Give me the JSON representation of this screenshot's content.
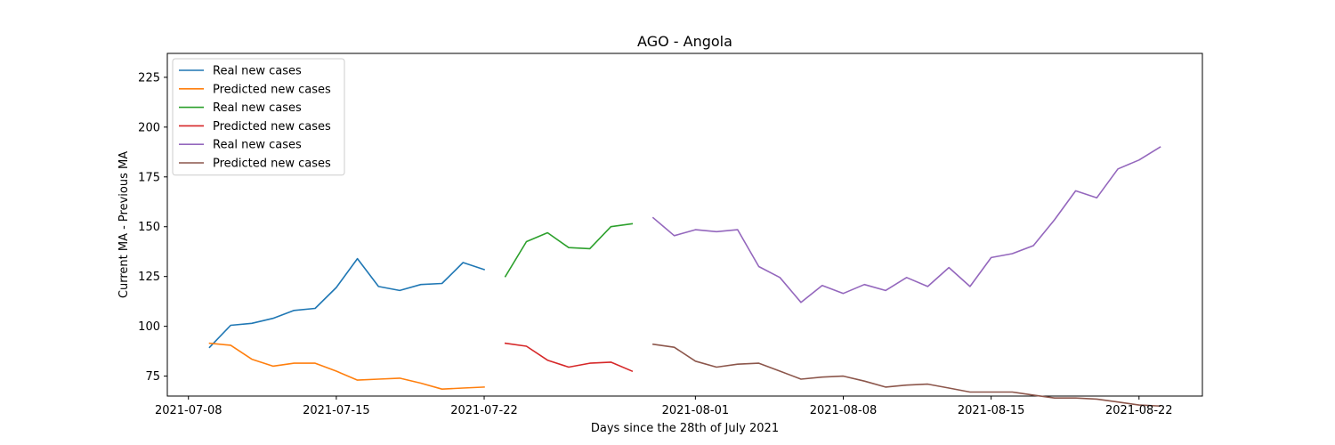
{
  "chart_data": {
    "type": "line",
    "title": "AGO - Angola",
    "xlabel": "Days since the 28th of July 2021",
    "ylabel": "Current MA - Previous MA",
    "xlim": [
      "2021-07-07",
      "2021-08-25"
    ],
    "ylim": [
      65,
      237
    ],
    "x_ticks": [
      "2021-07-08",
      "2021-07-15",
      "2021-07-22",
      "2021-08-01",
      "2021-08-08",
      "2021-08-15",
      "2021-08-22"
    ],
    "y_ticks": [
      75,
      100,
      125,
      150,
      175,
      200,
      225
    ],
    "grid": false,
    "legend_position": "top-left",
    "series": [
      {
        "name": "Real new cases",
        "color": "#1f77b4",
        "x": [
          "2021-07-09",
          "2021-07-10",
          "2021-07-11",
          "2021-07-12",
          "2021-07-13",
          "2021-07-14",
          "2021-07-15",
          "2021-07-16",
          "2021-07-17",
          "2021-07-18",
          "2021-07-19",
          "2021-07-20",
          "2021-07-21",
          "2021-07-22"
        ],
        "values": [
          89.5,
          100.5,
          101.5,
          104,
          108,
          109,
          119.5,
          134,
          120,
          118,
          121,
          121.5,
          132,
          128.5
        ]
      },
      {
        "name": "Predicted new cases",
        "color": "#ff7f0e",
        "x": [
          "2021-07-09",
          "2021-07-10",
          "2021-07-11",
          "2021-07-12",
          "2021-07-13",
          "2021-07-14",
          "2021-07-15",
          "2021-07-16",
          "2021-07-17",
          "2021-07-18",
          "2021-07-19",
          "2021-07-20",
          "2021-07-21",
          "2021-07-22"
        ],
        "values": [
          91.5,
          90.5,
          83.5,
          80,
          81.5,
          81.5,
          77.5,
          73,
          73.5,
          74,
          71.5,
          68.5,
          69,
          69.5
        ]
      },
      {
        "name": "Real new cases",
        "color": "#2ca02c",
        "x": [
          "2021-07-23",
          "2021-07-24",
          "2021-07-25",
          "2021-07-26",
          "2021-07-27",
          "2021-07-28",
          "2021-07-29"
        ],
        "values": [
          125,
          142.5,
          147,
          139.5,
          139,
          150,
          151.5
        ]
      },
      {
        "name": "Predicted new cases",
        "color": "#d62728",
        "x": [
          "2021-07-23",
          "2021-07-24",
          "2021-07-25",
          "2021-07-26",
          "2021-07-27",
          "2021-07-28",
          "2021-07-29"
        ],
        "values": [
          91.5,
          90,
          83,
          79.5,
          81.5,
          82,
          77.5
        ]
      },
      {
        "name": "Real new cases",
        "color": "#9467bd",
        "x": [
          "2021-07-30",
          "2021-07-31",
          "2021-08-01",
          "2021-08-02",
          "2021-08-03",
          "2021-08-04",
          "2021-08-05",
          "2021-08-06",
          "2021-08-07",
          "2021-08-08",
          "2021-08-09",
          "2021-08-10",
          "2021-08-11",
          "2021-08-12",
          "2021-08-13",
          "2021-08-14",
          "2021-08-15",
          "2021-08-16",
          "2021-08-17",
          "2021-08-18",
          "2021-08-19",
          "2021-08-20",
          "2021-08-21",
          "2021-08-22",
          "2021-08-23"
        ],
        "values": [
          154.5,
          145.5,
          148.5,
          147.5,
          148.5,
          130,
          124.5,
          112,
          120.5,
          116.5,
          121,
          118,
          124.5,
          120,
          129.5,
          120,
          134.5,
          136.5,
          140.5,
          153.5,
          168,
          164.5,
          179,
          183.5,
          190
        ]
      },
      {
        "name": "Predicted new cases",
        "color": "#8c564b",
        "x": [
          "2021-07-30",
          "2021-07-31",
          "2021-08-01",
          "2021-08-02",
          "2021-08-03",
          "2021-08-04",
          "2021-08-05",
          "2021-08-06",
          "2021-08-07",
          "2021-08-08",
          "2021-08-09",
          "2021-08-10",
          "2021-08-11",
          "2021-08-12",
          "2021-08-13",
          "2021-08-14",
          "2021-08-15",
          "2021-08-16",
          "2021-08-17",
          "2021-08-18",
          "2021-08-19",
          "2021-08-20",
          "2021-08-21",
          "2021-08-22",
          "2021-08-23"
        ],
        "values": [
          91,
          89.5,
          82.5,
          79.5,
          81,
          81.5,
          77.5,
          73.5,
          74.5,
          75,
          72.5,
          69.5,
          70.5,
          71,
          69,
          67,
          67,
          67,
          65.5,
          64,
          64,
          63.5,
          62,
          60.5,
          60
        ]
      }
    ]
  }
}
